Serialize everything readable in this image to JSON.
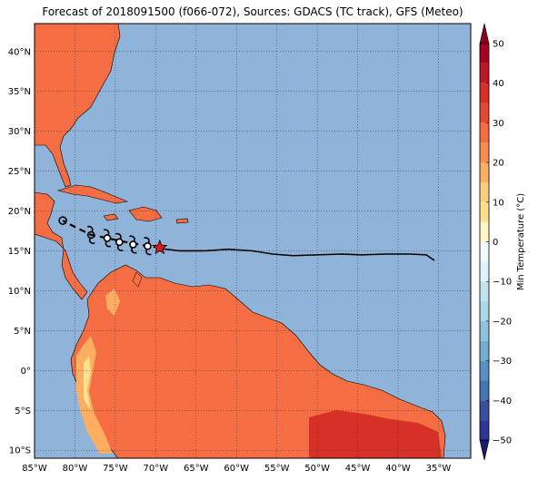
{
  "title": "Forecast of 2018091500 (f066-072), Sources: GDACS (TC track), GFS (Meteo)",
  "map": {
    "lon_range": [
      -85,
      -31
    ],
    "lat_range": [
      -11,
      43.5
    ],
    "lat_ticks": [
      "40°N",
      "35°N",
      "30°N",
      "25°N",
      "20°N",
      "15°N",
      "10°N",
      "5°N",
      "0°",
      "5°S",
      "10°S"
    ],
    "lat_values": [
      40,
      35,
      30,
      25,
      20,
      15,
      10,
      5,
      0,
      -5,
      -10
    ],
    "lon_ticks": [
      "85°W",
      "80°W",
      "75°W",
      "70°W",
      "65°W",
      "60°W",
      "55°W",
      "50°W",
      "45°W",
      "40°W",
      "35°W"
    ],
    "lon_values": [
      -85,
      -80,
      -75,
      -70,
      -65,
      -60,
      -55,
      -50,
      -45,
      -40,
      -35
    ],
    "ocean_color": "#8fb3d9",
    "land_color": "#f46d43",
    "warm_land_color": "#fdae61",
    "hot_land_color": "#d73027",
    "grid": true
  },
  "track": {
    "points": [
      {
        "lon": -35.5,
        "lat": 13.8
      },
      {
        "lon": -36.5,
        "lat": 14.5
      },
      {
        "lon": -38.5,
        "lat": 14.6
      },
      {
        "lon": -41.5,
        "lat": 14.6
      },
      {
        "lon": -44.5,
        "lat": 14.5
      },
      {
        "lon": -47.0,
        "lat": 14.6
      },
      {
        "lon": -50.0,
        "lat": 14.5
      },
      {
        "lon": -53.0,
        "lat": 14.4
      },
      {
        "lon": -55.5,
        "lat": 14.6
      },
      {
        "lon": -58.0,
        "lat": 15.0
      },
      {
        "lon": -61.0,
        "lat": 15.2
      },
      {
        "lon": -64.0,
        "lat": 15.0
      },
      {
        "lon": -67.0,
        "lat": 15.0
      },
      {
        "lon": -69.5,
        "lat": 15.3
      }
    ],
    "forecast_points": [
      {
        "lon": -69.5,
        "lat": 15.4
      },
      {
        "lon": -71.0,
        "lat": 15.6
      },
      {
        "lon": -72.5,
        "lat": 15.9
      },
      {
        "lon": -74.2,
        "lat": 16.2
      },
      {
        "lon": -76.0,
        "lat": 16.6
      },
      {
        "lon": -78.0,
        "lat": 17.0
      },
      {
        "lon": -80.0,
        "lat": 18.0
      },
      {
        "lon": -81.5,
        "lat": 18.8
      }
    ],
    "storm_symbols": [
      {
        "lon": -71.0,
        "lat": 15.6,
        "kind": "hurricane"
      },
      {
        "lon": -72.8,
        "lat": 15.8,
        "kind": "hurricane"
      },
      {
        "lon": -74.5,
        "lat": 16.1,
        "kind": "hurricane"
      },
      {
        "lon": -76.0,
        "lat": 16.6,
        "kind": "hurricane"
      },
      {
        "lon": -78.0,
        "lat": 17.0,
        "kind": "storm"
      },
      {
        "lon": -81.5,
        "lat": 18.8,
        "kind": "depression"
      }
    ],
    "current_position": {
      "lon": -69.5,
      "lat": 15.4
    },
    "track_color": "#000000",
    "marker_color": "#e31a1c"
  },
  "colorbar": {
    "label": "Min Temperature (°C)",
    "ticks": [
      "50",
      "40",
      "30",
      "20",
      "10",
      "0",
      "−10",
      "−20",
      "−30",
      "−40",
      "−50"
    ],
    "tick_values": [
      50,
      40,
      30,
      20,
      10,
      0,
      -10,
      -20,
      -30,
      -40,
      -50
    ],
    "levels": [
      {
        "from": 45,
        "to": 50,
        "color": "#a50026"
      },
      {
        "from": 40,
        "to": 45,
        "color": "#bd1828"
      },
      {
        "from": 35,
        "to": 40,
        "color": "#d73027"
      },
      {
        "from": 30,
        "to": 35,
        "color": "#e34a33"
      },
      {
        "from": 25,
        "to": 30,
        "color": "#f46d43"
      },
      {
        "from": 20,
        "to": 25,
        "color": "#f88d52"
      },
      {
        "from": 15,
        "to": 20,
        "color": "#fdae61"
      },
      {
        "from": 10,
        "to": 15,
        "color": "#fecf82"
      },
      {
        "from": 5,
        "to": 10,
        "color": "#fee090"
      },
      {
        "from": 0,
        "to": 5,
        "color": "#fff6c6"
      },
      {
        "from": -5,
        "to": 0,
        "color": "#f4fbfc"
      },
      {
        "from": -10,
        "to": -5,
        "color": "#e0f3f8"
      },
      {
        "from": -15,
        "to": -10,
        "color": "#c2e4ef"
      },
      {
        "from": -20,
        "to": -15,
        "color": "#abd9e9"
      },
      {
        "from": -25,
        "to": -20,
        "color": "#8fc3dd"
      },
      {
        "from": -30,
        "to": -25,
        "color": "#74add1"
      },
      {
        "from": -35,
        "to": -30,
        "color": "#5a8fc2"
      },
      {
        "from": -40,
        "to": -35,
        "color": "#4575b4"
      },
      {
        "from": -45,
        "to": -40,
        "color": "#3a4fa0"
      },
      {
        "from": -50,
        "to": -45,
        "color": "#313695"
      }
    ],
    "over_color": "#8b0020",
    "under_color": "#1a1a70"
  }
}
